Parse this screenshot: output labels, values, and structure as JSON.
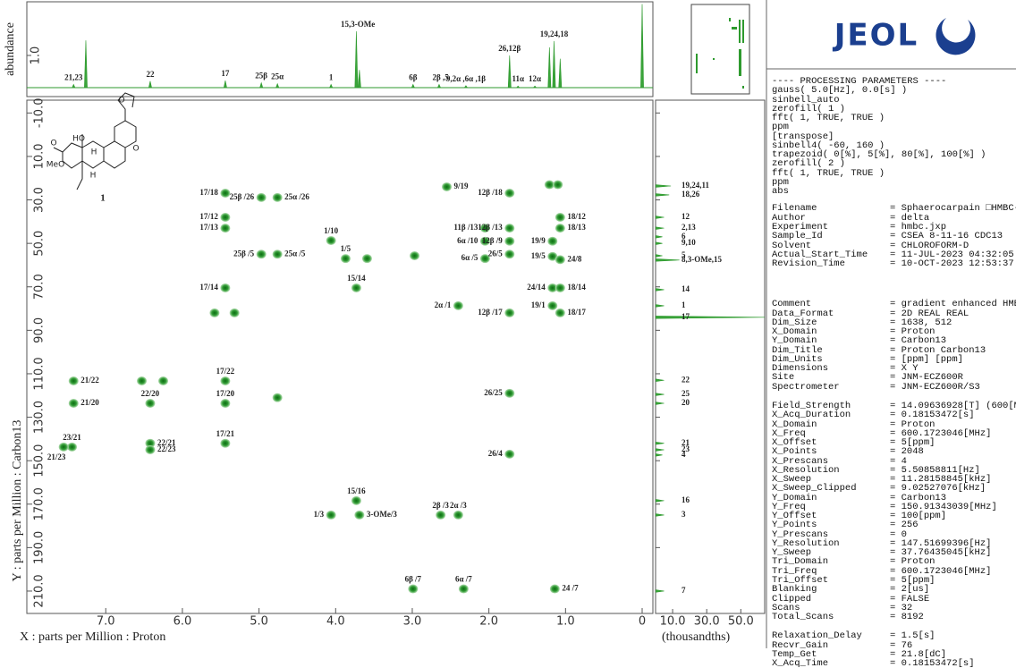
{
  "spectrum_2d": {
    "type": "hmbc",
    "x_axis_label": "X : parts per Million : Proton",
    "y_axis_label": "Y : parts per Million : Carbon13",
    "xlim": [
      8.03,
      -0.14
    ],
    "ylim": [
      -15.9,
      220.3
    ],
    "xticks": [
      {
        "value": 7,
        "label": "7.0"
      },
      {
        "value": 6,
        "label": "6.0"
      },
      {
        "value": 5,
        "label": "5.0"
      },
      {
        "value": 4,
        "label": "4.0"
      },
      {
        "value": 3,
        "label": "3.0"
      },
      {
        "value": 2,
        "label": "2.0"
      },
      {
        "value": 1,
        "label": "1.0"
      },
      0
    ],
    "yticks": [
      {
        "value": -10,
        "label": "-10.0"
      },
      {
        "value": 10,
        "label": "10.0"
      },
      {
        "value": 30,
        "label": "30.0"
      },
      {
        "value": 50,
        "label": "50.0"
      },
      {
        "value": 70,
        "label": "70.0"
      },
      {
        "value": 90,
        "label": "90.0"
      },
      {
        "value": 110,
        "label": "110.0"
      },
      {
        "value": 130,
        "label": "130.0"
      },
      {
        "value": 150,
        "label": "150.0"
      },
      {
        "value": 170,
        "label": "170.0"
      },
      {
        "value": 190,
        "label": "190.0"
      },
      {
        "value": 210,
        "label": "210.0"
      }
    ],
    "color": "#1f8f1f",
    "peaks": [
      {
        "x": 5.44,
        "y": 26.9,
        "label": "17/18"
      },
      {
        "x": 4.97,
        "y": 28.9,
        "label": "25β /26"
      },
      {
        "x": 4.76,
        "y": 28.9,
        "label": "25α /26"
      },
      {
        "x": 1.73,
        "y": 26.9,
        "label": "12β /18"
      },
      {
        "x": 1.21,
        "y": 23
      },
      {
        "x": 1.1,
        "y": 23
      },
      {
        "x": 2.55,
        "y": 24,
        "label": "9/19"
      },
      {
        "x": 5.44,
        "y": 38,
        "label": "17/12"
      },
      {
        "x": 5.44,
        "y": 43,
        "label": "17/13"
      },
      {
        "x": 1.07,
        "y": 38,
        "label": "18/12"
      },
      {
        "x": 1.07,
        "y": 43,
        "label": "18/13"
      },
      {
        "x": 2.05,
        "y": 43,
        "label": "11β /13"
      },
      {
        "x": 1.73,
        "y": 43,
        "label": "12β /13"
      },
      {
        "x": 4.06,
        "y": 48.7,
        "label": "1/10"
      },
      {
        "x": 2.05,
        "y": 49,
        "label": "6α /10"
      },
      {
        "x": 1.73,
        "y": 49,
        "label": "12β /9"
      },
      {
        "x": 1.17,
        "y": 49,
        "label": "19/9"
      },
      {
        "x": 4.97,
        "y": 55,
        "label": "25β /5"
      },
      {
        "x": 4.76,
        "y": 55,
        "label": "25α /5"
      },
      {
        "x": 3.87,
        "y": 57,
        "label": "1/5"
      },
      {
        "x": 3.59,
        "y": 57
      },
      {
        "x": 2.05,
        "y": 57,
        "label": "6α /5"
      },
      {
        "x": 1.73,
        "y": 55,
        "label": "26/5"
      },
      {
        "x": 1.17,
        "y": 56,
        "label": "19/5"
      },
      {
        "x": 1.07,
        "y": 57.5,
        "label": "24/8"
      },
      {
        "x": 2.97,
        "y": 55.7
      },
      {
        "x": 5.44,
        "y": 70.5,
        "label": "17/14"
      },
      {
        "x": 3.73,
        "y": 70.5,
        "label": "15/14"
      },
      {
        "x": 1.17,
        "y": 70.5,
        "label": "24/14"
      },
      {
        "x": 1.07,
        "y": 70.5,
        "label": "18/14"
      },
      {
        "x": 2.4,
        "y": 78.7,
        "label": "2α /1"
      },
      {
        "x": 1.17,
        "y": 78.7,
        "label": "19/1"
      },
      {
        "x": 1.73,
        "y": 82,
        "label": "12β /17"
      },
      {
        "x": 1.07,
        "y": 82,
        "label": "18/17"
      },
      {
        "x": 5.58,
        "y": 82
      },
      {
        "x": 5.32,
        "y": 82
      },
      {
        "x": 7.42,
        "y": 113.3,
        "label": "21/22"
      },
      {
        "x": 6.53,
        "y": 113.3
      },
      {
        "x": 6.25,
        "y": 113.3
      },
      {
        "x": 5.44,
        "y": 113.3,
        "label": "17/22"
      },
      {
        "x": 6.42,
        "y": 123.6,
        "label": "22/20"
      },
      {
        "x": 7.42,
        "y": 123.6,
        "label": "21/20"
      },
      {
        "x": 5.44,
        "y": 123.6,
        "label": "17/20"
      },
      {
        "x": 4.76,
        "y": 121
      },
      {
        "x": 1.73,
        "y": 119,
        "label": "26/25"
      },
      {
        "x": 7.44,
        "y": 143.7,
        "label": "23/21"
      },
      {
        "x": 7.55,
        "y": 143.7,
        "label": "21/23"
      },
      {
        "x": 6.42,
        "y": 142,
        "label": "22/21"
      },
      {
        "x": 6.42,
        "y": 145,
        "label": "22/23"
      },
      {
        "x": 5.44,
        "y": 142,
        "label": "17/21"
      },
      {
        "x": 1.73,
        "y": 147,
        "label": "26/4"
      },
      {
        "x": 3.73,
        "y": 168.4,
        "label": "15/16"
      },
      {
        "x": 4.06,
        "y": 175,
        "label": "1/3"
      },
      {
        "x": 3.69,
        "y": 175,
        "label": "3-OMe/3"
      },
      {
        "x": 2.63,
        "y": 175,
        "label": "2β /3"
      },
      {
        "x": 2.4,
        "y": 175,
        "label": "2α /3"
      },
      {
        "x": 2.99,
        "y": 209,
        "label": "6β /7"
      },
      {
        "x": 2.33,
        "y": 209,
        "label": "6α /7"
      },
      {
        "x": 1.14,
        "y": 209,
        "label": "24 /7"
      }
    ]
  },
  "proton_projection": {
    "y_axis_label": "abundance",
    "ylim": [
      -0.28,
      2.67
    ],
    "yticks": [
      {
        "value": 1,
        "label": "1.0"
      }
    ],
    "peaks": [
      {
        "ppm": 7.42,
        "height": 0.1
      },
      {
        "ppm": 7.26,
        "height": 1.47
      },
      {
        "ppm": 6.42,
        "height": 0.2
      },
      {
        "ppm": 5.44,
        "height": 0.22
      },
      {
        "ppm": 4.97,
        "height": 0.15
      },
      {
        "ppm": 4.76,
        "height": 0.12
      },
      {
        "ppm": 4.06,
        "height": 0.1
      },
      {
        "ppm": 3.73,
        "height": 1.75
      },
      {
        "ppm": 3.69,
        "height": 0.55
      },
      {
        "ppm": 2.99,
        "height": 0.1
      },
      {
        "ppm": 2.65,
        "height": 0.1
      },
      {
        "ppm": 2.3,
        "height": 0.06
      },
      {
        "ppm": 1.73,
        "height": 1.0
      },
      {
        "ppm": 1.62,
        "height": 0.05
      },
      {
        "ppm": 1.4,
        "height": 0.05
      },
      {
        "ppm": 1.21,
        "height": 1.25
      },
      {
        "ppm": 1.15,
        "height": 1.45
      },
      {
        "ppm": 1.07,
        "height": 0.9
      },
      {
        "ppm": 0,
        "height": 2.6
      }
    ],
    "labels": [
      {
        "text": "21,23",
        "ppm": 7.42
      },
      {
        "text": "22",
        "ppm": 6.42
      },
      {
        "text": "17",
        "ppm": 5.44
      },
      {
        "text": "25β",
        "ppm": 4.97
      },
      {
        "text": "25α",
        "ppm": 4.76
      },
      {
        "text": "1",
        "ppm": 4.06
      },
      {
        "text": "15,3-OMe",
        "ppm": 3.71
      },
      {
        "text": "6β",
        "ppm": 2.99
      },
      {
        "text": "2β ,5",
        "ppm": 2.63
      },
      {
        "text": "9,2α ,6α ,1β",
        "ppm": 2.3
      },
      {
        "text": "26,12β",
        "ppm": 1.73
      },
      {
        "text": "11α",
        "ppm": 1.62
      },
      {
        "text": "12α",
        "ppm": 1.4
      },
      {
        "text": "19,24,18",
        "ppm": 1.15
      }
    ]
  },
  "carbon_projection": {
    "x_axis_label": "(thousandths)",
    "xlim": [
      0,
      64
    ],
    "xticks": [
      {
        "value": 10,
        "label": "10.0"
      },
      {
        "value": 30,
        "label": "30.0"
      },
      {
        "value": 50,
        "label": "50.0"
      }
    ],
    "peaks": [
      {
        "ppm": 23.6,
        "intensity": 9,
        "label": "19,24,11"
      },
      {
        "ppm": 27.7,
        "intensity": 8,
        "label": "18,26"
      },
      {
        "ppm": 38,
        "intensity": 5,
        "label": "12"
      },
      {
        "ppm": 43,
        "intensity": 5,
        "label": "2,13"
      },
      {
        "ppm": 47,
        "intensity": 4,
        "label": "6"
      },
      {
        "ppm": 50,
        "intensity": 4,
        "label": "9,10"
      },
      {
        "ppm": 55.7,
        "intensity": 4,
        "label": "5"
      },
      {
        "ppm": 57.7,
        "intensity": 14,
        "label": "8,3-OMe,15"
      },
      {
        "ppm": 71.3,
        "intensity": 5,
        "label": "14"
      },
      {
        "ppm": 78.7,
        "intensity": 5,
        "label": "1"
      },
      {
        "ppm": 84,
        "intensity": 64,
        "label": "17"
      },
      {
        "ppm": 113,
        "intensity": 5,
        "label": "22"
      },
      {
        "ppm": 119.5,
        "intensity": 5,
        "label": "25"
      },
      {
        "ppm": 123.6,
        "intensity": 5,
        "label": "20"
      },
      {
        "ppm": 142,
        "intensity": 5,
        "label": "21"
      },
      {
        "ppm": 145,
        "intensity": 5,
        "label": "23"
      },
      {
        "ppm": 147.4,
        "intensity": 4,
        "label": "4"
      },
      {
        "ppm": 168.4,
        "intensity": 5,
        "label": "16"
      },
      {
        "ppm": 175,
        "intensity": 5,
        "label": "3"
      },
      {
        "ppm": 210,
        "intensity": 5,
        "label": "7"
      }
    ]
  },
  "structure": {
    "compound": "1",
    "atoms": [
      "HO",
      "MeO",
      "O",
      "O",
      "O",
      "H",
      "H"
    ]
  },
  "logo": "JEOL",
  "parameters": {
    "processing_title": "---- PROCESSING PARAMETERS ----",
    "processing": [
      "gauss( 5.0[Hz], 0.0[s] )",
      "sinbell_auto",
      "zerofill( 1 )",
      "fft( 1, TRUE, TRUE )",
      "ppm",
      "[transpose]",
      "sinbell4( -60, 160 )",
      "trapezoid( 0[%], 5[%], 80[%], 100[%] )",
      "zerofill( 2 )",
      "fft( 1, TRUE, TRUE )",
      "ppm",
      "abs"
    ],
    "separator": "=",
    "groups": [
      [
        [
          "Filename",
          "Sphaerocarpain □HMBC-"
        ],
        [
          "Author",
          "delta"
        ],
        [
          "Experiment",
          "hmbc.jxp"
        ],
        [
          "Sample_Id",
          "CSEA 8-11-16 CDC13"
        ],
        [
          "Solvent",
          "CHLOROFORM-D"
        ],
        [
          "Actual_Start_Time",
          "11-JUL-2023 04:32:05"
        ],
        [
          "Revision_Time",
          "10-OCT-2023 12:53:37"
        ]
      ],
      [
        [
          "Comment",
          "gradient enhanced HMB"
        ],
        [
          "Data_Format",
          "2D REAL REAL"
        ],
        [
          "Dim_Size",
          "1638, 512"
        ],
        [
          "X_Domain",
          "Proton"
        ],
        [
          "Y_Domain",
          "Carbon13"
        ],
        [
          "Dim_Title",
          "Proton Carbon13"
        ],
        [
          "Dim_Units",
          "[ppm] [ppm]"
        ],
        [
          "Dimensions",
          "X Y"
        ],
        [
          "Site",
          "JNM-ECZ600R"
        ],
        [
          "Spectrometer",
          "JNM-ECZ600R/S3"
        ]
      ],
      [
        [
          "Field_Strength",
          "14.09636928[T] (600[M"
        ],
        [
          "X_Acq_Duration",
          "0.18153472[s]"
        ],
        [
          "X_Domain",
          "Proton"
        ],
        [
          "X_Freq",
          "600.1723046[MHz]"
        ],
        [
          "X_Offset",
          "5[ppm]"
        ],
        [
          "X_Points",
          "2048"
        ],
        [
          "X_Prescans",
          "4"
        ],
        [
          "X_Resolution",
          "5.50858811[Hz]"
        ],
        [
          "X_Sweep",
          "11.28158845[kHz]"
        ],
        [
          "X_Sweep_Clipped",
          "9.02527076[kHz]"
        ],
        [
          "Y_Domain",
          "Carbon13"
        ],
        [
          "Y_Freq",
          "150.91343039[MHz]"
        ],
        [
          "Y_Offset",
          "100[ppm]"
        ],
        [
          "Y_Points",
          "256"
        ],
        [
          "Y_Prescans",
          "0"
        ],
        [
          "Y_Resolution",
          "147.51699396[Hz]"
        ],
        [
          "Y_Sweep",
          "37.76435045[kHz]"
        ],
        [
          "Tri_Domain",
          "Proton"
        ],
        [
          "Tri_Freq",
          "600.1723046[MHz]"
        ],
        [
          "Tri_Offset",
          "5[ppm]"
        ],
        [
          "Blanking",
          "2[us]"
        ],
        [
          "Clipped",
          "FALSE"
        ],
        [
          "Scans",
          "32"
        ],
        [
          "Total_Scans",
          "8192"
        ]
      ],
      [
        [
          "Relaxation_Delay",
          "1.5[s]"
        ],
        [
          "Recvr_Gain",
          "76"
        ],
        [
          "Temp_Get",
          "21.8[dC]"
        ],
        [
          "X_Acq_Time",
          "0.18153472[s]"
        ]
      ]
    ]
  }
}
